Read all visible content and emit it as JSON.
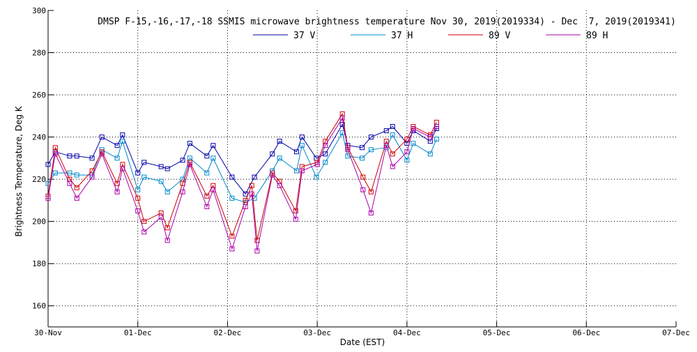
{
  "chart_data": {
    "type": "line",
    "title": "DMSP F-15,-16,-17,-18 SSMIS microwave brightness temperature Nov 30, 2019(2019334) - Dec  7, 2019(2019341)",
    "xlabel": "Date (EST)",
    "ylabel": "Brightness Temperature, Deg K",
    "xlim": [
      0,
      7
    ],
    "ylim": [
      150,
      300
    ],
    "x_tick_values": [
      0,
      1,
      2,
      3,
      4,
      5,
      6,
      7
    ],
    "x_tick_labels": [
      "30-Nov",
      "01-Dec",
      "02-Dec",
      "03-Dec",
      "04-Dec",
      "05-Dec",
      "06-Dec",
      "07-Dec"
    ],
    "y_tick_values": [
      160,
      180,
      200,
      220,
      240,
      260,
      280,
      300
    ],
    "y_tick_labels": [
      "160",
      "180",
      "200",
      "220",
      "240",
      "260",
      "280",
      "300"
    ],
    "grid": true,
    "legend_position": "top-center",
    "series": [
      {
        "name": "37 V",
        "color": "#0000aa",
        "x": [
          0.0,
          0.08,
          0.24,
          0.32,
          0.49,
          0.6,
          0.77,
          0.83,
          1.0,
          1.07,
          1.26,
          1.33,
          1.5,
          1.58,
          1.77,
          1.84,
          2.05,
          2.2,
          2.3,
          2.5,
          2.58,
          2.77,
          2.83,
          2.99,
          3.09,
          3.28,
          3.34,
          3.5,
          3.6,
          3.77,
          3.84,
          4.0,
          4.07,
          4.26,
          4.33
        ],
        "values": [
          227,
          233,
          231,
          231,
          230,
          240,
          236,
          241,
          223,
          228,
          226,
          225,
          229,
          237,
          231,
          236,
          221,
          213,
          221,
          232,
          238,
          233,
          240,
          230,
          232,
          246,
          236,
          235,
          240,
          243,
          245,
          237,
          243,
          238,
          244
        ]
      },
      {
        "name": "37 H",
        "color": "#0088cc",
        "x": [
          0.0,
          0.08,
          0.24,
          0.32,
          0.49,
          0.6,
          0.77,
          0.83,
          1.0,
          1.07,
          1.26,
          1.33,
          1.5,
          1.58,
          1.77,
          1.84,
          2.05,
          2.2,
          2.3,
          2.5,
          2.58,
          2.77,
          2.83,
          2.99,
          3.09,
          3.28,
          3.34,
          3.5,
          3.6,
          3.77,
          3.84,
          4.0,
          4.07,
          4.26,
          4.33
        ],
        "values": [
          218,
          223,
          223,
          222,
          222,
          234,
          230,
          238,
          215,
          221,
          219,
          214,
          220,
          230,
          223,
          230,
          211,
          209,
          211,
          224,
          230,
          224,
          236,
          221,
          228,
          242,
          231,
          230,
          234,
          235,
          241,
          229,
          237,
          232,
          239
        ]
      },
      {
        "name": "89 V",
        "color": "#cc0000",
        "x": [
          0.0,
          0.08,
          0.24,
          0.32,
          0.49,
          0.6,
          0.77,
          0.83,
          1.0,
          1.07,
          1.26,
          1.33,
          1.5,
          1.58,
          1.77,
          1.84,
          2.05,
          2.2,
          2.27,
          2.33,
          2.5,
          2.58,
          2.76,
          2.83,
          3.0,
          3.09,
          3.28,
          3.34,
          3.51,
          3.6,
          3.77,
          3.84,
          4.0,
          4.07,
          4.26,
          4.33
        ],
        "values": [
          212,
          235,
          220,
          216,
          224,
          233,
          218,
          227,
          211,
          200,
          204,
          197,
          218,
          228,
          212,
          217,
          193,
          210,
          217,
          191,
          223,
          219,
          205,
          226,
          228,
          238,
          251,
          235,
          221,
          214,
          238,
          232,
          239,
          245,
          241,
          247
        ]
      },
      {
        "name": "89 H",
        "color": "#aa00aa",
        "x": [
          0.0,
          0.08,
          0.24,
          0.32,
          0.49,
          0.6,
          0.77,
          0.83,
          1.0,
          1.07,
          1.26,
          1.33,
          1.5,
          1.58,
          1.77,
          1.84,
          2.05,
          2.2,
          2.27,
          2.33,
          2.5,
          2.58,
          2.76,
          2.83,
          3.0,
          3.09,
          3.28,
          3.34,
          3.51,
          3.6,
          3.77,
          3.84,
          4.0,
          4.07,
          4.26,
          4.33
        ],
        "values": [
          211,
          232,
          218,
          211,
          221,
          232,
          214,
          225,
          205,
          195,
          202,
          191,
          214,
          227,
          207,
          215,
          187,
          207,
          213,
          186,
          222,
          217,
          201,
          224,
          227,
          236,
          249,
          234,
          215,
          204,
          236,
          226,
          233,
          244,
          240,
          245
        ]
      }
    ]
  }
}
